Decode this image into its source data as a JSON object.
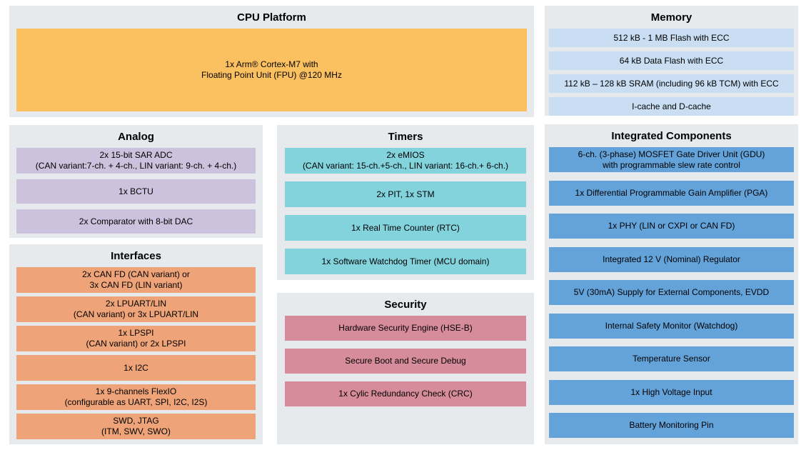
{
  "palette": {
    "section_bg": "#E6EAEC",
    "cpu_block": "#FBC161",
    "memory_block": "#C9DEF3",
    "analog_block": "#CCC2DD",
    "interfaces_block": "#EEA478",
    "timers_block": "#83D3DD",
    "security_block": "#D78C9B",
    "integrated_block": "#64A3DA",
    "text": "#000000"
  },
  "sections": {
    "cpu": {
      "title": "CPU Platform",
      "blocks": [
        "1x Arm® Cortex-M7 with\nFloating Point Unit (FPU) @120 MHz"
      ]
    },
    "memory": {
      "title": "Memory",
      "blocks": [
        "512 kB - 1 MB Flash with ECC",
        "64 kB Data Flash with ECC",
        "112 kB – 128 kB SRAM (including 96 kB TCM) with ECC",
        "I-cache and D-cache"
      ]
    },
    "analog": {
      "title": "Analog",
      "blocks": [
        "2x 15-bit SAR ADC\n(CAN variant:7-ch. + 4-ch., LIN variant: 9-ch. + 4-ch.)",
        "1x BCTU",
        "2x Comparator with 8-bit DAC"
      ]
    },
    "interfaces": {
      "title": "Interfaces",
      "blocks": [
        "2x CAN FD (CAN variant) or\n3x CAN FD (LIN variant)",
        "2x LPUART/LIN\n(CAN variant) or 3x LPUART/LIN",
        "1x LPSPI\n(CAN variant) or 2x LPSPI",
        "1x I2C",
        "1x 9-channels FlexIO\n(configurable as UART, SPI, I2C, I2S)",
        "SWD, JTAG\n(ITM, SWV, SWO)"
      ]
    },
    "timers": {
      "title": "Timers",
      "blocks": [
        "2x eMIOS\n(CAN variant: 15-ch.+5-ch., LIN variant: 16-ch.+ 6-ch.)",
        "2x PIT, 1x STM",
        "1x Real Time Counter (RTC)",
        "1x Software Watchdog Timer (MCU domain)"
      ]
    },
    "security": {
      "title": "Security",
      "blocks": [
        "Hardware Security Engine (HSE-B)",
        "Secure Boot and Secure Debug",
        "1x Cylic Redundancy Check (CRC)"
      ]
    },
    "integrated": {
      "title": "Integrated Components",
      "blocks": [
        "6-ch. (3-phase) MOSFET Gate Driver Unit (GDU)\nwith programmable slew rate control",
        "1x Differential Programmable Gain Amplifier (PGA)",
        "1x PHY (LIN or CXPI or CAN FD)",
        "Integrated 12 V (Nominal) Regulator",
        "5V (30mA) Supply for External Components, EVDD",
        "Internal Safety Monitor (Watchdog)",
        "Temperature Sensor",
        "1x High Voltage Input",
        "Battery Monitoring Pin"
      ]
    }
  }
}
